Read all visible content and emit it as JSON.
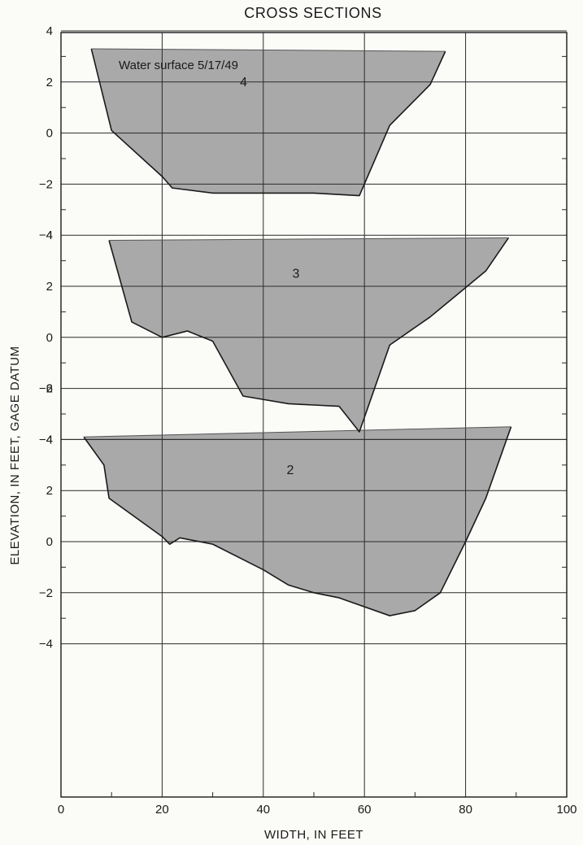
{
  "chart_data": {
    "type": "area",
    "title": "CROSS SECTIONS",
    "xlabel": "WIDTH, IN FEET",
    "ylabel": "ELEVATION, IN FEET, GAGE DATUM",
    "xlim": [
      0,
      100
    ],
    "x_ticks": [
      "0",
      "20",
      "40",
      "60",
      "80",
      "100"
    ],
    "grid": true,
    "annotation": "Water surface 5/17/49",
    "fill_color": "#a9a9a9",
    "line_color": "#1a1a1a",
    "panels": [
      {
        "name": "2",
        "ylim": [
          -4,
          6
        ],
        "y_ticks": [
          "6",
          "4",
          "2",
          "0",
          "−2",
          "−4"
        ],
        "water_surface": [
          [
            4.5,
            4.1
          ],
          [
            89,
            4.5
          ]
        ],
        "bed": [
          [
            4.5,
            4.1
          ],
          [
            8.5,
            3.0
          ],
          [
            9.5,
            1.7
          ],
          [
            20,
            0.2
          ],
          [
            21.5,
            -0.1
          ],
          [
            23.5,
            0.15
          ],
          [
            30,
            -0.1
          ],
          [
            40,
            -1.1
          ],
          [
            45,
            -1.7
          ],
          [
            50,
            -2.0
          ],
          [
            55,
            -2.2
          ],
          [
            65,
            -2.9
          ],
          [
            70,
            -2.7
          ],
          [
            75,
            -2.0
          ],
          [
            80,
            0.0
          ],
          [
            84,
            1.7
          ],
          [
            89,
            4.5
          ]
        ]
      },
      {
        "name": "3",
        "ylim": [
          -4,
          4
        ],
        "y_ticks": [
          "4",
          "2",
          "0",
          "−2",
          "−4"
        ],
        "water_surface": [
          [
            9.5,
            3.8
          ],
          [
            88.5,
            3.9
          ]
        ],
        "bed": [
          [
            9.5,
            3.8
          ],
          [
            14,
            0.6
          ],
          [
            20,
            0.0
          ],
          [
            25,
            0.25
          ],
          [
            30,
            -0.15
          ],
          [
            36,
            -2.3
          ],
          [
            45,
            -2.6
          ],
          [
            55,
            -2.7
          ],
          [
            59,
            -3.7
          ],
          [
            65,
            -0.3
          ],
          [
            73,
            0.8
          ],
          [
            84,
            2.6
          ],
          [
            88.5,
            3.9
          ]
        ]
      },
      {
        "name": "4",
        "ylim": [
          -4,
          4
        ],
        "y_ticks": [
          "4",
          "2",
          "0",
          "−2",
          "−4"
        ],
        "water_surface": [
          [
            6,
            3.3
          ],
          [
            76,
            3.2
          ]
        ],
        "bed": [
          [
            6,
            3.3
          ],
          [
            10,
            0.1
          ],
          [
            20,
            -1.7
          ],
          [
            22,
            -2.15
          ],
          [
            30,
            -2.35
          ],
          [
            50,
            -2.35
          ],
          [
            59,
            -2.45
          ],
          [
            65,
            0.3
          ],
          [
            73,
            1.9
          ],
          [
            76,
            3.2
          ]
        ]
      }
    ]
  }
}
